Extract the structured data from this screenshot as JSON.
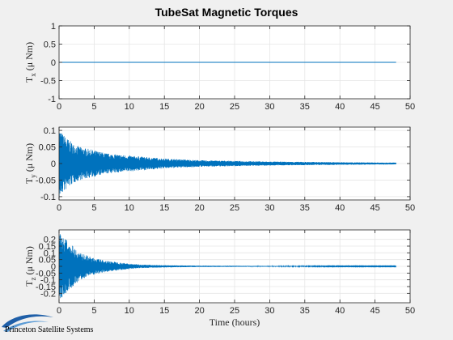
{
  "figure": {
    "title": "TubeSat Magnetic Torques",
    "series_color": "#0072bd",
    "background": "#f0f0f0",
    "axes_background": "#ffffff"
  },
  "logo": {
    "text": "Princeton Satellite Systems",
    "icon": "pss-swoosh-logo"
  },
  "chart_data": [
    {
      "type": "line",
      "title": "TubeSat Magnetic Torques",
      "xlabel": "",
      "ylabel": "T_x (μ Nm)",
      "ylabel_main": "T",
      "ylabel_sub": "x",
      "ylabel_unit": "(μ Nm)",
      "xlim": [
        0,
        50
      ],
      "ylim": [
        -1,
        1
      ],
      "xticks": [
        0,
        5,
        10,
        15,
        20,
        25,
        30,
        35,
        40,
        45,
        50
      ],
      "yticks": [
        -1,
        -0.5,
        0,
        0.5,
        1
      ],
      "ytick_labels": [
        "-1",
        "-0.5",
        "0",
        "0.5",
        "1"
      ],
      "grid": true,
      "series": [
        {
          "values_description": "constant",
          "x": [
            0,
            48
          ],
          "y": [
            0,
            0
          ]
        }
      ]
    },
    {
      "type": "line",
      "xlabel": "",
      "ylabel": "T_y (μ Nm)",
      "ylabel_main": "T",
      "ylabel_sub": "y",
      "ylabel_unit": "(μ Nm)",
      "xlim": [
        0,
        50
      ],
      "ylim": [
        -0.11,
        0.11
      ],
      "xticks": [
        0,
        5,
        10,
        15,
        20,
        25,
        30,
        35,
        40,
        45,
        50
      ],
      "yticks": [
        -0.1,
        -0.05,
        0,
        0.05,
        0.1
      ],
      "ytick_labels": [
        "-0.1",
        "-0.05",
        "0",
        "0.05",
        "0.1"
      ],
      "grid": true,
      "series": [
        {
          "envelope_x": [
            0,
            0.5,
            1,
            2,
            3,
            5,
            7,
            10,
            15,
            20,
            25,
            30,
            35,
            40,
            45,
            48
          ],
          "envelope_y": [
            0.11,
            0.09,
            0.08,
            0.06,
            0.05,
            0.04,
            0.03,
            0.024,
            0.015,
            0.01,
            0.008,
            0.006,
            0.005,
            0.004,
            0.003,
            0.003
          ]
        }
      ]
    },
    {
      "type": "line",
      "xlabel": "Time (hours)",
      "ylabel": "T_z (μ Nm)",
      "ylabel_main": "T",
      "ylabel_sub": "z",
      "ylabel_unit": "(μ Nm)",
      "xlim": [
        0,
        50
      ],
      "ylim": [
        -0.27,
        0.27
      ],
      "xticks": [
        0,
        5,
        10,
        15,
        20,
        25,
        30,
        35,
        40,
        45,
        50
      ],
      "yticks": [
        -0.2,
        -0.15,
        -0.1,
        -0.05,
        0,
        0.05,
        0.1,
        0.15,
        0.2
      ],
      "ytick_labels": [
        "-0.2",
        "-0.15",
        "-0.1",
        "-0.05",
        "0",
        "0.05",
        "0.1",
        "0.15",
        "0.2"
      ],
      "grid": true,
      "series": [
        {
          "envelope_x": [
            0,
            0.3,
            1,
            2,
            3,
            4,
            5,
            7,
            10,
            12,
            15,
            20,
            30,
            40,
            48
          ],
          "envelope_y": [
            0.25,
            0.24,
            0.2,
            0.15,
            0.1,
            0.08,
            0.06,
            0.04,
            0.02,
            0.012,
            0.008,
            0.005,
            0.003,
            0.002,
            0.002
          ]
        }
      ]
    }
  ]
}
